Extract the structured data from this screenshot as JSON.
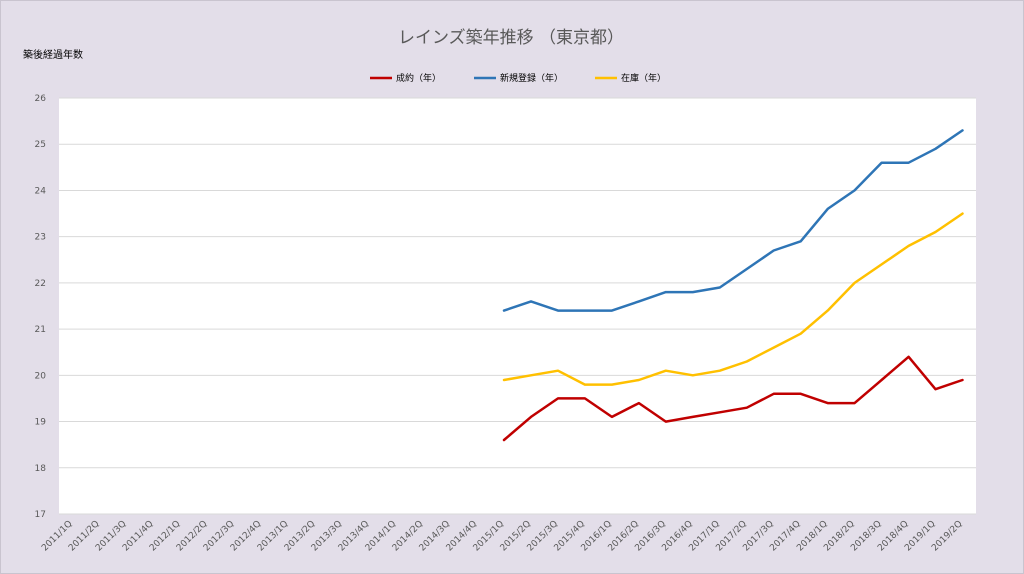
{
  "chart_data": {
    "type": "line",
    "title": "レインズ築年推移 （東京都）",
    "ylabel": "築後経過年数",
    "xlabel": "",
    "ylim": [
      17,
      26
    ],
    "yticks": [
      17,
      18,
      19,
      20,
      21,
      22,
      23,
      24,
      25,
      26
    ],
    "grid": true,
    "legend_position": "top",
    "categories": [
      "2011/1Q",
      "2011/2Q",
      "2011/3Q",
      "2011/4Q",
      "2012/1Q",
      "2012/2Q",
      "2012/3Q",
      "2012/4Q",
      "2013/1Q",
      "2013/2Q",
      "2013/3Q",
      "2013/4Q",
      "2014/1Q",
      "2014/2Q",
      "2014/3Q",
      "2014/4Q",
      "2015/1Q",
      "2015/2Q",
      "2015/3Q",
      "2015/4Q",
      "2016/1Q",
      "2016/2Q",
      "2016/3Q",
      "2016/4Q",
      "2017/1Q",
      "2017/2Q",
      "2017/3Q",
      "2017/4Q",
      "2018/1Q",
      "2018/2Q",
      "2018/3Q",
      "2018/4Q",
      "2019/1Q",
      "2019/2Q"
    ],
    "series": [
      {
        "name": "成約（年）",
        "color": "#c00000",
        "values": [
          null,
          null,
          null,
          null,
          null,
          null,
          null,
          null,
          null,
          null,
          null,
          null,
          null,
          null,
          null,
          null,
          18.6,
          19.1,
          19.5,
          19.5,
          19.1,
          19.4,
          19.0,
          19.1,
          19.2,
          19.3,
          19.6,
          19.6,
          19.4,
          19.4,
          19.9,
          20.4,
          19.7,
          19.9
        ]
      },
      {
        "name": "新規登録（年）",
        "color": "#2e75b6",
        "values": [
          null,
          null,
          null,
          null,
          null,
          null,
          null,
          null,
          null,
          null,
          null,
          null,
          null,
          null,
          null,
          null,
          21.4,
          21.6,
          21.4,
          21.4,
          21.4,
          21.6,
          21.8,
          21.8,
          21.9,
          22.3,
          22.7,
          22.9,
          23.6,
          24.0,
          24.6,
          24.6,
          24.9,
          25.3
        ]
      },
      {
        "name": "在庫（年）",
        "color": "#ffc000",
        "values": [
          null,
          null,
          null,
          null,
          null,
          null,
          null,
          null,
          null,
          null,
          null,
          null,
          null,
          null,
          null,
          null,
          19.9,
          20.0,
          20.1,
          19.8,
          19.8,
          19.9,
          20.1,
          20.0,
          20.1,
          20.3,
          20.6,
          20.9,
          21.4,
          22.0,
          22.4,
          22.8,
          23.1,
          23.5
        ]
      }
    ]
  }
}
